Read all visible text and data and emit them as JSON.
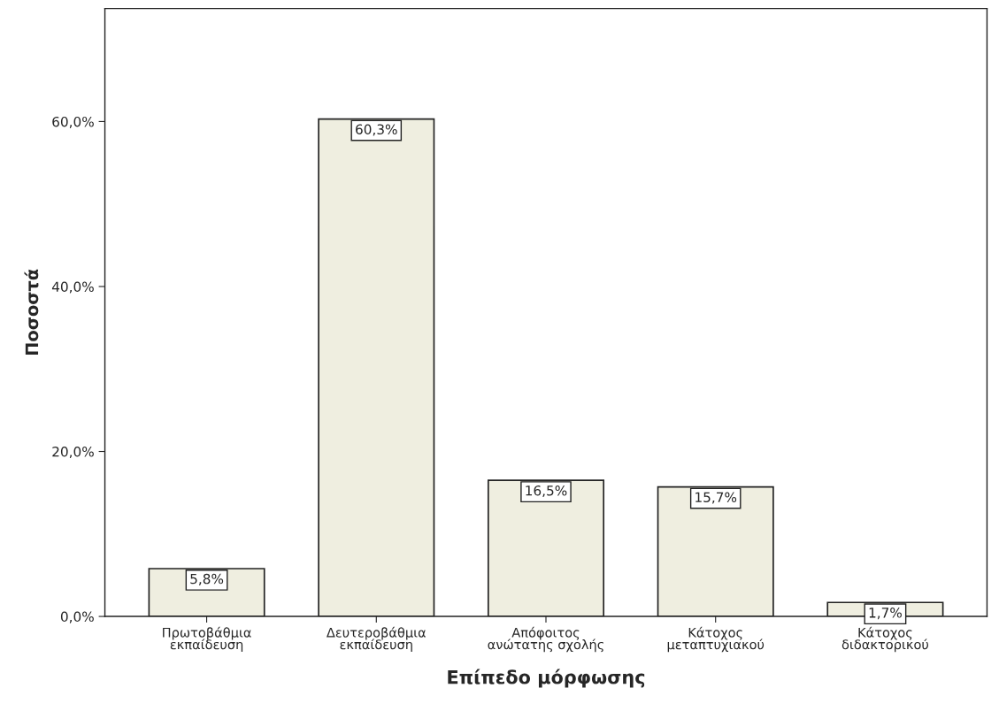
{
  "chart_data": {
    "type": "bar",
    "xlabel": "Επίπεδο μόρφωσης",
    "ylabel": "Ποσοστά",
    "categories": [
      "Πρωτοβάθμια\nεκπαίδευση",
      "Δευτεροβάθμια\nεκπαίδευση",
      "Απόφοιτος\nανώτατης σχολής",
      "Κάτοχος\nμεταπτυχιακού",
      "Κάτοχος\nδιδακτορικού"
    ],
    "values": [
      5.8,
      60.3,
      16.5,
      15.7,
      1.7
    ],
    "value_labels": [
      "5,8%",
      "60,3%",
      "16,5%",
      "15,7%",
      "1,7%"
    ],
    "color": "#efeee0",
    "ylim": [
      0,
      73.7
    ],
    "yticks": [
      {
        "value": 0,
        "label": "0,0%"
      },
      {
        "value": 20,
        "label": "20,0%"
      },
      {
        "value": 40,
        "label": "40,0%"
      },
      {
        "value": 60,
        "label": "60,0%"
      }
    ],
    "grid": false
  }
}
